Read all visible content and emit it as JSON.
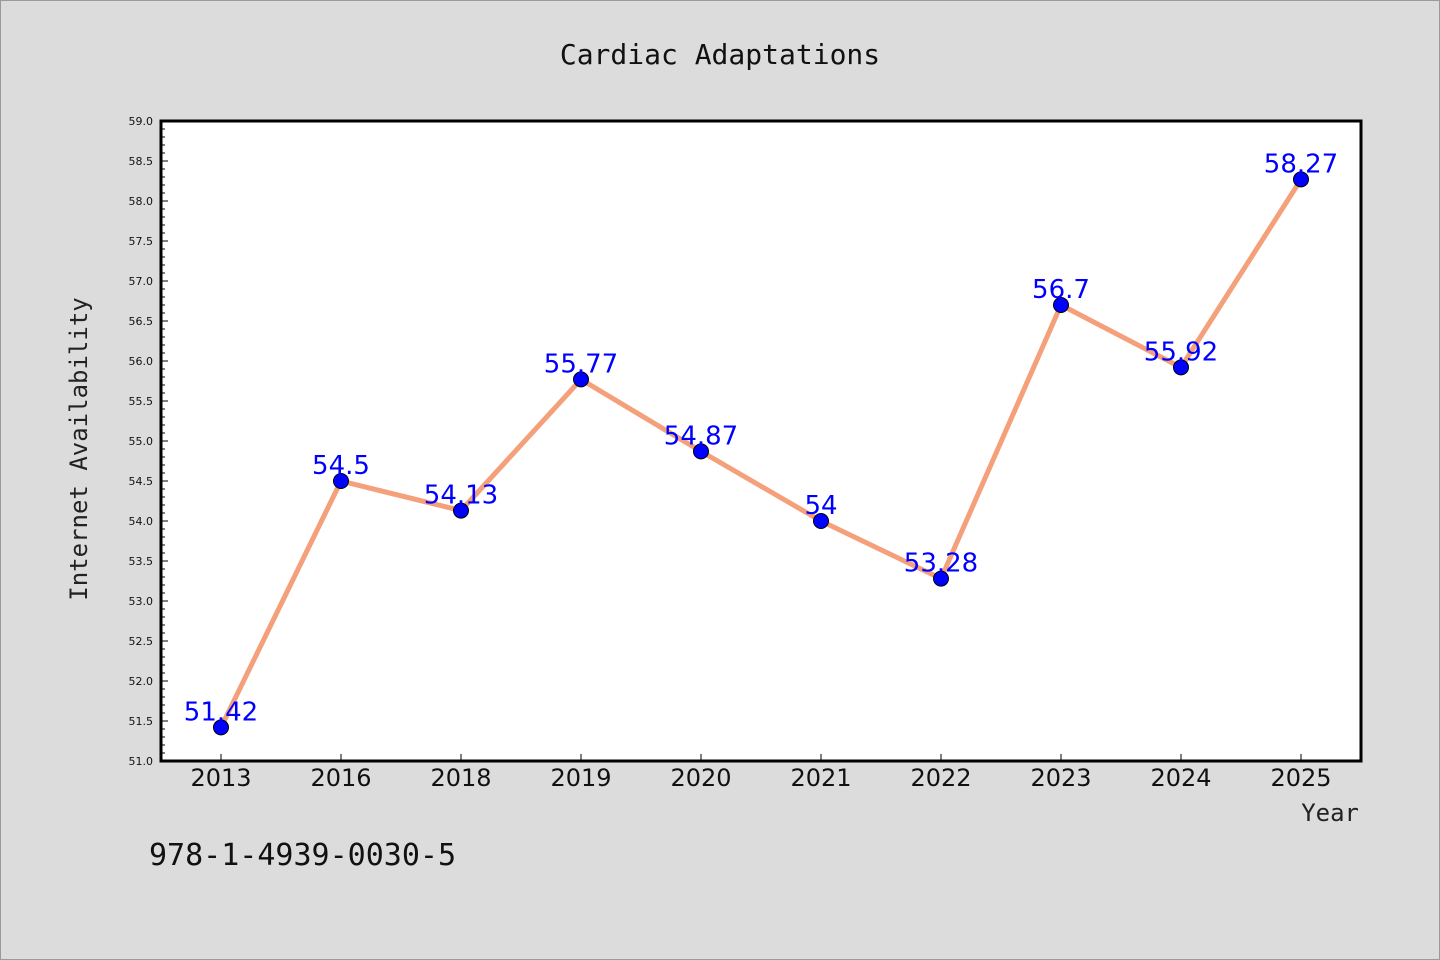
{
  "chart_data": {
    "type": "line",
    "title": "Cardiac Adaptations",
    "xlabel": "Year",
    "ylabel": "Internet Availability",
    "categories": [
      "2013",
      "2016",
      "2018",
      "2019",
      "2020",
      "2021",
      "2022",
      "2023",
      "2024",
      "2025"
    ],
    "series": [
      {
        "values": [
          51.42,
          54.5,
          54.13,
          55.77,
          54.87,
          54,
          53.28,
          56.7,
          55.92,
          58.27
        ],
        "data_labels": [
          "51.42",
          "54.5",
          "54.13",
          "55.77",
          "54.87",
          "54",
          "53.28",
          "56.7",
          "55.92",
          "58.27"
        ],
        "line_color": "#f4a07a",
        "marker_color": "#0000ff"
      }
    ],
    "ylim": [
      51.0,
      59.0
    ],
    "yticks": [
      "51.0",
      "51.5",
      "52.0",
      "52.5",
      "53.0",
      "53.5",
      "54.0",
      "54.5",
      "55.0",
      "55.5",
      "56.0",
      "56.5",
      "57.0",
      "57.5",
      "58.0",
      "58.5",
      "59.0"
    ],
    "grid": false,
    "legend": "none"
  },
  "footer": {
    "text": "978-1-4939-0030-5"
  },
  "colors": {
    "background": "#dcdcdc",
    "plot_background": "#ffffff"
  }
}
